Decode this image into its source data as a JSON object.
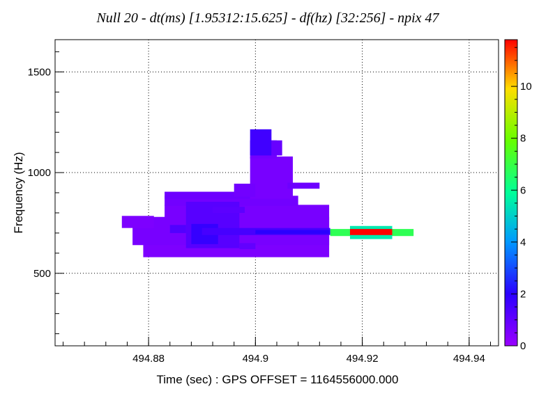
{
  "chart_data": {
    "type": "heatmap",
    "title": "Null  20 - dt(ms) [1.95312:15.625] - df(hz) [32:256] - npix 47",
    "xlabel": "Time (sec) : GPS OFFSET = 1164556000.000",
    "ylabel": "Frequency (Hz)",
    "xlim": [
      494.8625,
      494.9455
    ],
    "ylim": [
      140,
      1660
    ],
    "x_ticks": [
      494.88,
      494.9,
      494.92,
      494.94
    ],
    "x_tick_labels": [
      "494.88",
      "494.9",
      "494.92",
      "494.94"
    ],
    "y_ticks": [
      500,
      1000,
      1500
    ],
    "y_tick_labels": [
      "500",
      "1000",
      "1500"
    ],
    "grid": true,
    "colorbar": {
      "range": [
        0,
        11.8
      ],
      "ticks": [
        0,
        2,
        4,
        6,
        8,
        10
      ],
      "tick_labels": [
        "0",
        "2",
        "4",
        "6",
        "8",
        "10"
      ],
      "colormap": "rainbow"
    },
    "cells": [
      {
        "x0": 494.879,
        "x1": 494.9138,
        "y0": 580,
        "y1": 720,
        "value": 0.5
      },
      {
        "x0": 494.877,
        "x1": 494.9138,
        "y0": 640,
        "y1": 780,
        "value": 0.6
      },
      {
        "x0": 494.875,
        "x1": 494.881,
        "y0": 725,
        "y1": 785,
        "value": 0.5
      },
      {
        "x0": 494.883,
        "x1": 494.9138,
        "y0": 720,
        "y1": 840,
        "value": 0.6
      },
      {
        "x0": 494.883,
        "x1": 494.908,
        "y0": 835,
        "y1": 885,
        "value": 0.7
      },
      {
        "x0": 494.883,
        "x1": 494.899,
        "y0": 870,
        "y1": 905,
        "value": 0.8
      },
      {
        "x0": 494.899,
        "x1": 494.907,
        "y0": 870,
        "y1": 1080,
        "value": 0.6
      },
      {
        "x0": 494.899,
        "x1": 494.904,
        "y0": 1070,
        "y1": 1160,
        "value": 0.7
      },
      {
        "x0": 494.899,
        "x1": 494.903,
        "y0": 1085,
        "y1": 1215,
        "value": 1.6
      },
      {
        "x0": 494.903,
        "x1": 494.905,
        "y0": 1085,
        "y1": 1160,
        "value": 0.9
      },
      {
        "x0": 494.896,
        "x1": 494.9,
        "y0": 880,
        "y1": 945,
        "value": 0.7
      },
      {
        "x0": 494.906,
        "x1": 494.912,
        "y0": 920,
        "y1": 950,
        "value": 0.8
      },
      {
        "x0": 494.887,
        "x1": 494.897,
        "y0": 625,
        "y1": 855,
        "value": 1.2
      },
      {
        "x0": 494.888,
        "x1": 494.893,
        "y0": 645,
        "y1": 745,
        "value": 1.8
      },
      {
        "x0": 494.89,
        "x1": 494.914,
        "y0": 690,
        "y1": 725,
        "value": 1.5
      },
      {
        "x0": 494.9,
        "x1": 494.914,
        "y0": 695,
        "y1": 715,
        "value": 2.0
      },
      {
        "x0": 494.884,
        "x1": 494.887,
        "y0": 700,
        "y1": 740,
        "value": 1.3
      },
      {
        "x0": 494.892,
        "x1": 494.898,
        "y0": 800,
        "y1": 830,
        "value": 1.1
      },
      {
        "x0": 494.897,
        "x1": 494.9,
        "y0": 620,
        "y1": 650,
        "value": 1.0
      },
      {
        "x0": 494.914,
        "x1": 494.9296,
        "y0": 685,
        "y1": 720,
        "value": 6.8
      },
      {
        "x0": 494.9177,
        "x1": 494.9256,
        "y0": 670,
        "y1": 735,
        "value": 5.5
      },
      {
        "x0": 494.9177,
        "x1": 494.9256,
        "y0": 690,
        "y1": 720,
        "value": 11.8
      }
    ]
  }
}
